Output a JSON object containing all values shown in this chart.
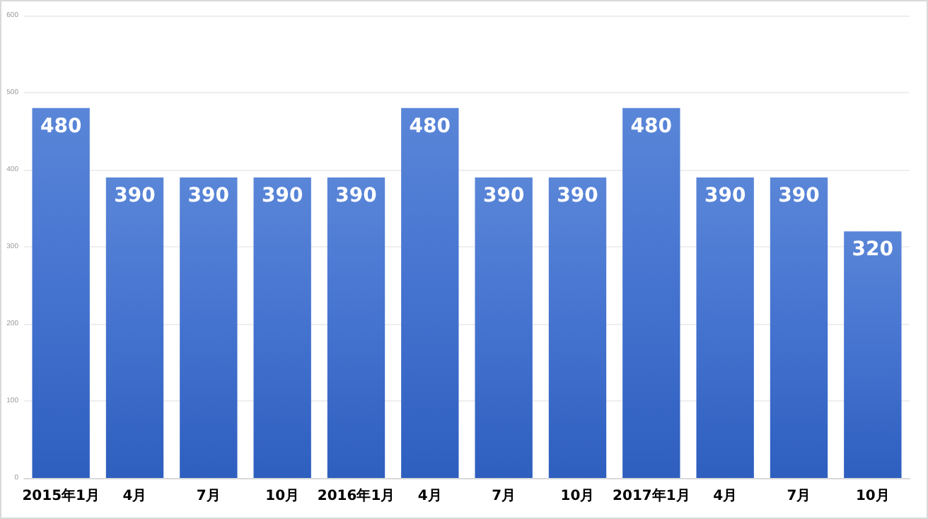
{
  "chart_data": {
    "type": "bar",
    "categories": [
      "2015年1月",
      "4月",
      "7月",
      "10月",
      "2016年1月",
      "4月",
      "7月",
      "10月",
      "2017年1月",
      "4月",
      "7月",
      "10月"
    ],
    "values": [
      480,
      390,
      390,
      390,
      390,
      480,
      390,
      390,
      480,
      390,
      390,
      320
    ],
    "color": "#4472cf",
    "ylim": [
      0,
      600
    ],
    "yticks": [
      0,
      100,
      200,
      300,
      400,
      500,
      600
    ],
    "grid": "y",
    "data_labels": true
  }
}
